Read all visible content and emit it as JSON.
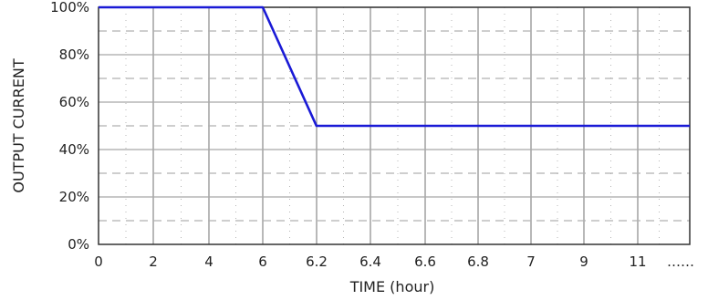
{
  "chart_data": {
    "type": "line",
    "title": "",
    "xlabel": "TIME (hour)",
    "ylabel": "OUTPUT CURRENT",
    "x_ticks": [
      "0",
      "2",
      "4",
      "6",
      "6.2",
      "6.4",
      "6.6",
      "6.8",
      "7",
      "9",
      "11",
      "……"
    ],
    "y_ticks": [
      "0%",
      "20%",
      "40%",
      "60%",
      "80%",
      "100%"
    ],
    "ylim": [
      0,
      100
    ],
    "y_unit": "%",
    "x_scale": "piecewise: 0–6 h in 2 h steps, 6–7 h in 0.2 h steps, 7–11 h in 2 h steps",
    "grid": {
      "major": "solid gray",
      "minor": "dashed and dotted gray"
    },
    "series": [
      {
        "color": "#1a1ad6",
        "x": [
          0,
          6,
          6.2,
          11,
          12
        ],
        "y": [
          100,
          100,
          50,
          50,
          50
        ]
      }
    ]
  }
}
